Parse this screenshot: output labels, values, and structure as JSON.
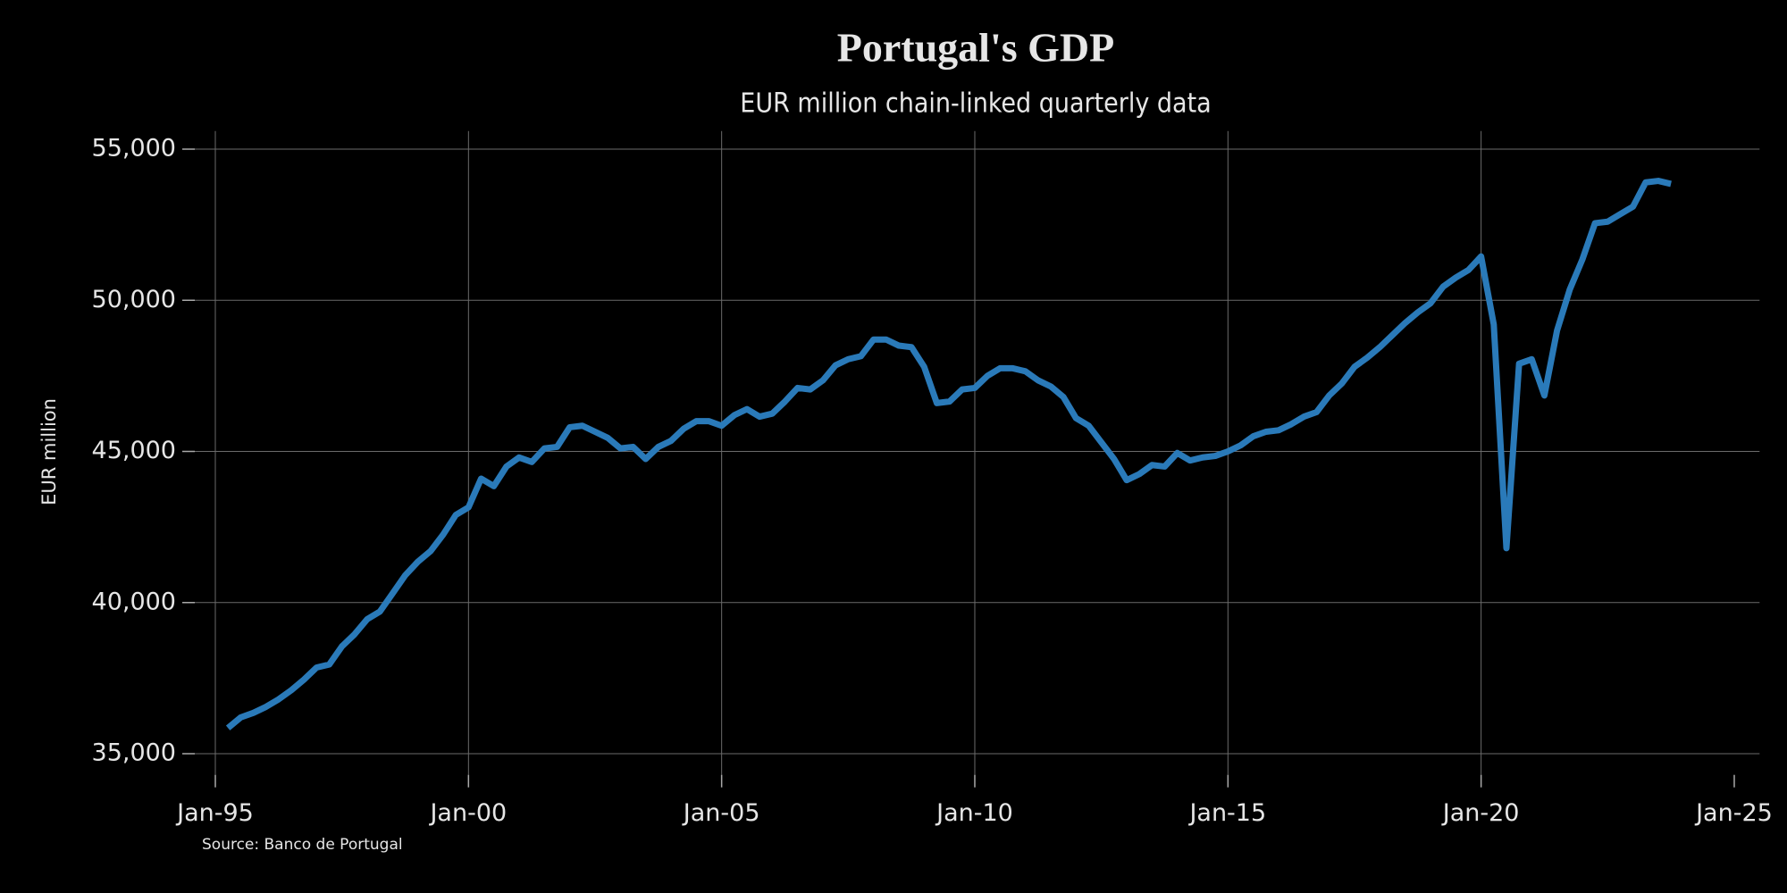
{
  "chart_data": {
    "type": "line",
    "title": "Portugal's GDP",
    "subtitle": "EUR million chain-linked quarterly data",
    "y_label": "EUR million",
    "source": "Source: Banco de Portugal",
    "color": "#2a7ab9",
    "grid": true,
    "x": [
      "1995-04",
      "1995-07",
      "1995-10",
      "1996-01",
      "1996-04",
      "1996-07",
      "1996-10",
      "1997-01",
      "1997-04",
      "1997-07",
      "1997-10",
      "1998-01",
      "1998-04",
      "1998-07",
      "1998-10",
      "1999-01",
      "1999-04",
      "1999-07",
      "1999-10",
      "2000-01",
      "2000-04",
      "2000-07",
      "2000-10",
      "2001-01",
      "2001-04",
      "2001-07",
      "2001-10",
      "2002-01",
      "2002-04",
      "2002-07",
      "2002-10",
      "2003-01",
      "2003-04",
      "2003-07",
      "2003-10",
      "2004-01",
      "2004-04",
      "2004-07",
      "2004-10",
      "2005-01",
      "2005-04",
      "2005-07",
      "2005-10",
      "2006-01",
      "2006-04",
      "2006-07",
      "2006-10",
      "2007-01",
      "2007-04",
      "2007-07",
      "2007-10",
      "2008-01",
      "2008-04",
      "2008-07",
      "2008-10",
      "2009-01",
      "2009-04",
      "2009-07",
      "2009-10",
      "2010-01",
      "2010-04",
      "2010-07",
      "2010-10",
      "2011-01",
      "2011-04",
      "2011-07",
      "2011-10",
      "2012-01",
      "2012-04",
      "2012-07",
      "2012-10",
      "2013-01",
      "2013-04",
      "2013-07",
      "2013-10",
      "2014-01",
      "2014-04",
      "2014-07",
      "2014-10",
      "2015-01",
      "2015-04",
      "2015-07",
      "2015-10",
      "2016-01",
      "2016-04",
      "2016-07",
      "2016-10",
      "2017-01",
      "2017-04",
      "2017-07",
      "2017-10",
      "2018-01",
      "2018-04",
      "2018-07",
      "2018-10",
      "2019-01",
      "2019-04",
      "2019-07",
      "2019-10",
      "2020-01",
      "2020-04",
      "2020-07",
      "2020-10",
      "2021-01",
      "2021-04",
      "2021-07",
      "2021-10",
      "2022-01",
      "2022-04",
      "2022-07",
      "2022-10",
      "2023-01",
      "2023-04",
      "2023-07",
      "2023-10"
    ],
    "values": [
      35850,
      36200,
      36350,
      36550,
      36800,
      37100,
      37450,
      37850,
      37950,
      38550,
      38950,
      39450,
      39700,
      40300,
      40900,
      41350,
      41700,
      42250,
      42900,
      43150,
      44100,
      43850,
      44500,
      44800,
      44650,
      45100,
      45150,
      45800,
      45850,
      45650,
      45450,
      45100,
      45150,
      44750,
      45150,
      45350,
      45750,
      46000,
      46000,
      45850,
      46200,
      46400,
      46150,
      46250,
      46650,
      47100,
      47050,
      47350,
      47850,
      48050,
      48150,
      48700,
      48700,
      48500,
      48450,
      47800,
      46600,
      46650,
      47050,
      47100,
      47500,
      47750,
      47750,
      47650,
      47350,
      47150,
      46800,
      46100,
      45850,
      45300,
      44750,
      44050,
      44250,
      44550,
      44500,
      44950,
      44700,
      44800,
      44850,
      45000,
      45200,
      45500,
      45650,
      45700,
      45900,
      46150,
      46300,
      46850,
      47250,
      47800,
      48100,
      48450,
      48850,
      49250,
      49600,
      49900,
      50450,
      50750,
      51000,
      51450,
      49200,
      41800,
      47900,
      48050,
      46850,
      49000,
      50350,
      51350,
      52550,
      52600,
      52850,
      53100,
      53900,
      53950,
      53850
    ],
    "xlim": [
      "1994-04",
      "2025-07"
    ],
    "xticks": [
      {
        "value": "1995-01",
        "label": "Jan-95"
      },
      {
        "value": "2000-01",
        "label": "Jan-00"
      },
      {
        "value": "2005-01",
        "label": "Jan-05"
      },
      {
        "value": "2010-01",
        "label": "Jan-10"
      },
      {
        "value": "2015-01",
        "label": "Jan-15"
      },
      {
        "value": "2020-01",
        "label": "Jan-20"
      },
      {
        "value": "2025-01",
        "label": "Jan-25"
      }
    ],
    "ylim": [
      34300,
      55600
    ],
    "yticks": [
      {
        "value": 35000,
        "label": "35,000"
      },
      {
        "value": 40000,
        "label": "40,000"
      },
      {
        "value": 45000,
        "label": "45,000"
      },
      {
        "value": 50000,
        "label": "50,000"
      },
      {
        "value": 55000,
        "label": "55,000"
      }
    ]
  }
}
